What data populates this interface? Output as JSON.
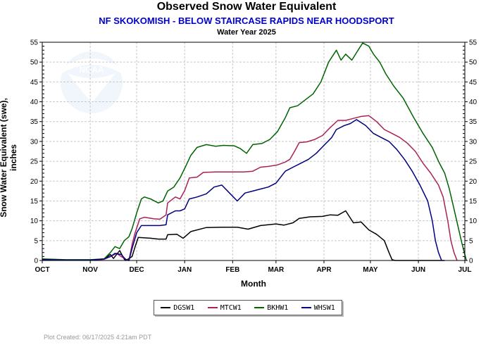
{
  "chart_data": {
    "type": "line",
    "title": "Observed Snow Water Equivalent",
    "subtitle": "NF SKOKOMISH - BELOW STAIRCASE RAPIDS NEAR HOODSPORT",
    "subtitle_color": "#0000cc",
    "water_year": "Water Year 2025",
    "ylabel": "Snow Water Equivalent (swe),  inches",
    "xlabel": "Month",
    "ylim": [
      0,
      55
    ],
    "yticks": [
      "0",
      "5",
      "10",
      "15",
      "20",
      "25",
      "30",
      "35",
      "40",
      "45",
      "50",
      "55"
    ],
    "month_ticks": [
      "OCT",
      "NOV",
      "DEC",
      "JAN",
      "FEB",
      "MAR",
      "APR",
      "MAY",
      "JUN",
      "JUL"
    ],
    "grid": true,
    "legend_position": "bottom-center",
    "series": [
      {
        "name": "DGSW1",
        "color": "#000000",
        "points": [
          [
            0,
            0.2
          ],
          [
            15,
            0.1
          ],
          [
            31,
            0.1
          ],
          [
            40,
            0.3
          ],
          [
            44,
            1.5
          ],
          [
            46,
            0.5
          ],
          [
            50,
            2.5
          ],
          [
            53,
            0.3
          ],
          [
            54,
            0
          ],
          [
            58,
            1
          ],
          [
            60,
            3.5
          ],
          [
            62,
            5.8
          ],
          [
            70,
            5.6
          ],
          [
            75,
            5.4
          ],
          [
            80,
            5.4
          ],
          [
            81,
            6.5
          ],
          [
            87,
            6.6
          ],
          [
            91,
            5.6
          ],
          [
            96,
            7.3
          ],
          [
            106,
            8.3
          ],
          [
            116,
            8.4
          ],
          [
            126,
            8.4
          ],
          [
            133,
            7.9
          ],
          [
            141,
            8.8
          ],
          [
            151,
            9.2
          ],
          [
            156,
            8.9
          ],
          [
            162,
            9.5
          ],
          [
            166,
            10.6
          ],
          [
            173,
            11
          ],
          [
            181,
            11.1
          ],
          [
            186,
            11.5
          ],
          [
            191,
            11.4
          ],
          [
            196,
            12.5
          ],
          [
            201,
            9.5
          ],
          [
            206,
            9.7
          ],
          [
            211,
            7.7
          ],
          [
            216,
            6.6
          ],
          [
            221,
            5
          ],
          [
            224,
            2
          ],
          [
            226,
            0.2
          ],
          [
            228,
            0
          ],
          [
            240,
            0
          ],
          [
            260,
            0
          ]
        ]
      },
      {
        "name": "MTCW1",
        "color": "#aa2255",
        "points": [
          [
            0,
            0.2
          ],
          [
            15,
            0.1
          ],
          [
            31,
            0.1
          ],
          [
            40,
            0.3
          ],
          [
            44,
            1
          ],
          [
            48,
            1.8
          ],
          [
            51,
            1
          ],
          [
            54,
            0.3
          ],
          [
            56,
            0
          ],
          [
            58,
            4
          ],
          [
            60,
            7
          ],
          [
            63,
            10.5
          ],
          [
            66,
            10.9
          ],
          [
            72,
            10.5
          ],
          [
            76,
            10.4
          ],
          [
            80,
            11.5
          ],
          [
            81,
            14.5
          ],
          [
            86,
            16
          ],
          [
            89,
            15.5
          ],
          [
            92,
            17.6
          ],
          [
            95,
            20.8
          ],
          [
            100,
            21
          ],
          [
            104,
            22.2
          ],
          [
            112,
            22.3
          ],
          [
            122,
            22.3
          ],
          [
            130,
            22.3
          ],
          [
            136,
            22.5
          ],
          [
            141,
            23.5
          ],
          [
            146,
            23.7
          ],
          [
            152,
            24.1
          ],
          [
            157,
            24.8
          ],
          [
            160,
            25.5
          ],
          [
            163,
            27.5
          ],
          [
            166,
            29.7
          ],
          [
            171,
            29.9
          ],
          [
            176,
            30.5
          ],
          [
            181,
            31.5
          ],
          [
            186,
            33.5
          ],
          [
            191,
            35.3
          ],
          [
            196,
            35.3
          ],
          [
            201,
            35.8
          ],
          [
            206,
            36.3
          ],
          [
            211,
            36.5
          ],
          [
            216,
            35
          ],
          [
            221,
            33
          ],
          [
            226,
            32
          ],
          [
            231,
            31
          ],
          [
            236,
            29.5
          ],
          [
            241,
            27.5
          ],
          [
            246,
            24.5
          ],
          [
            251,
            22
          ],
          [
            256,
            19
          ],
          [
            259,
            16
          ],
          [
            262,
            10
          ],
          [
            264,
            5
          ],
          [
            266,
            2
          ],
          [
            268,
            0
          ]
        ]
      },
      {
        "name": "BKHW1",
        "color": "#006400",
        "points": [
          [
            0,
            0.4
          ],
          [
            15,
            0.2
          ],
          [
            31,
            0.2
          ],
          [
            40,
            0.4
          ],
          [
            44,
            2
          ],
          [
            47,
            3.5
          ],
          [
            50,
            3
          ],
          [
            53,
            5
          ],
          [
            56,
            6
          ],
          [
            58,
            8
          ],
          [
            61,
            12
          ],
          [
            64,
            15.5
          ],
          [
            66,
            16
          ],
          [
            70,
            15.5
          ],
          [
            75,
            14.5
          ],
          [
            78,
            15
          ],
          [
            81,
            17.5
          ],
          [
            85,
            18.5
          ],
          [
            89,
            20.8
          ],
          [
            93,
            24
          ],
          [
            96,
            26.5
          ],
          [
            100,
            28.5
          ],
          [
            106,
            29.2
          ],
          [
            112,
            28.8
          ],
          [
            117,
            29
          ],
          [
            124,
            28.9
          ],
          [
            128,
            28.2
          ],
          [
            132,
            27
          ],
          [
            136,
            29.2
          ],
          [
            142,
            29.5
          ],
          [
            147,
            30.5
          ],
          [
            152,
            32.5
          ],
          [
            157,
            36
          ],
          [
            160,
            38.5
          ],
          [
            165,
            39
          ],
          [
            170,
            40.5
          ],
          [
            175,
            42
          ],
          [
            180,
            45
          ],
          [
            185,
            50
          ],
          [
            190,
            53
          ],
          [
            193,
            50.5
          ],
          [
            196,
            52
          ],
          [
            200,
            50.5
          ],
          [
            204,
            53
          ],
          [
            207,
            54.8
          ],
          [
            211,
            54
          ],
          [
            214,
            52
          ],
          [
            218,
            50
          ],
          [
            222,
            47
          ],
          [
            227,
            44
          ],
          [
            233,
            41
          ],
          [
            240,
            36
          ],
          [
            246,
            32
          ],
          [
            252,
            28.5
          ],
          [
            256,
            25
          ],
          [
            260,
            22
          ],
          [
            263,
            18
          ],
          [
            266,
            13
          ],
          [
            271,
            4.5
          ],
          [
            274,
            0
          ]
        ]
      },
      {
        "name": "WHSW1",
        "color": "#000080",
        "points": [
          [
            0,
            0.2
          ],
          [
            15,
            0.1
          ],
          [
            31,
            0.1
          ],
          [
            40,
            0.4
          ],
          [
            44,
            1
          ],
          [
            47,
            1.8
          ],
          [
            51,
            1.5
          ],
          [
            54,
            0.2
          ],
          [
            56,
            0
          ],
          [
            58,
            3
          ],
          [
            61,
            7
          ],
          [
            64,
            8.8
          ],
          [
            70,
            8.8
          ],
          [
            76,
            8.8
          ],
          [
            80,
            9
          ],
          [
            81,
            11.5
          ],
          [
            86,
            12.5
          ],
          [
            89,
            12.5
          ],
          [
            92,
            13
          ],
          [
            95,
            15.5
          ],
          [
            100,
            16
          ],
          [
            106,
            16.8
          ],
          [
            111,
            18.5
          ],
          [
            116,
            19
          ],
          [
            121,
            17
          ],
          [
            126,
            15
          ],
          [
            131,
            17
          ],
          [
            136,
            17.5
          ],
          [
            141,
            18
          ],
          [
            146,
            18.5
          ],
          [
            151,
            19.5
          ],
          [
            154,
            21
          ],
          [
            157,
            22.5
          ],
          [
            162,
            23.5
          ],
          [
            167,
            24.5
          ],
          [
            172,
            25.5
          ],
          [
            177,
            27
          ],
          [
            182,
            29
          ],
          [
            187,
            31
          ],
          [
            190,
            33
          ],
          [
            195,
            34
          ],
          [
            199,
            34.5
          ],
          [
            203,
            35.5
          ],
          [
            209,
            34
          ],
          [
            214,
            32
          ],
          [
            219,
            31
          ],
          [
            224,
            30
          ],
          [
            229,
            28
          ],
          [
            234,
            25.5
          ],
          [
            239,
            22.5
          ],
          [
            244,
            19
          ],
          [
            249,
            15
          ],
          [
            252,
            10
          ],
          [
            254,
            5
          ],
          [
            256,
            2
          ],
          [
            258,
            0
          ]
        ]
      }
    ]
  },
  "footer_text": "Plot Created:  06/17/2025 4:21am PDT"
}
